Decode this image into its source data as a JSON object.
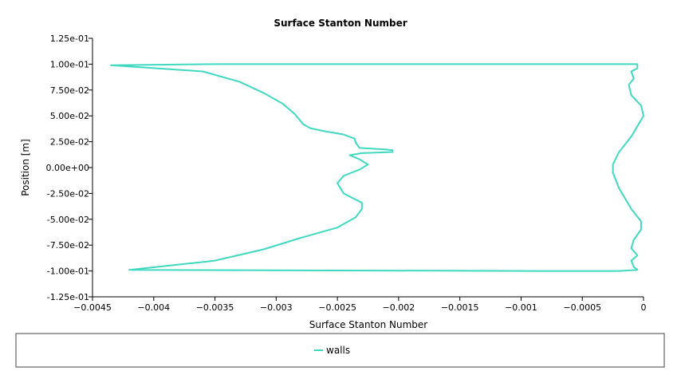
{
  "chart_data": {
    "type": "line",
    "title": "Surface Stanton Number",
    "xlabel": "Surface Stanton Number",
    "ylabel": "Position [m]",
    "xlim": [
      -0.0045,
      0
    ],
    "ylim": [
      -0.125,
      0.125
    ],
    "x_ticks": [
      {
        "value": -0.0045,
        "label": "−0.0045"
      },
      {
        "value": -0.004,
        "label": "−0.004"
      },
      {
        "value": -0.0035,
        "label": "−0.0035"
      },
      {
        "value": -0.003,
        "label": "−0.003"
      },
      {
        "value": -0.0025,
        "label": "−0.0025"
      },
      {
        "value": -0.002,
        "label": "−0.002"
      },
      {
        "value": -0.0015,
        "label": "−0.0015"
      },
      {
        "value": -0.001,
        "label": "−0.001"
      },
      {
        "value": -0.0005,
        "label": "−0.0005"
      },
      {
        "value": 0,
        "label": "0"
      }
    ],
    "y_ticks": [
      {
        "value": 0.125,
        "label": "1.25e-01"
      },
      {
        "value": 0.1,
        "label": "1.00e-01"
      },
      {
        "value": 0.075,
        "label": "7.50e-02"
      },
      {
        "value": 0.05,
        "label": "5.00e-02"
      },
      {
        "value": 0.025,
        "label": "2.50e-02"
      },
      {
        "value": 0,
        "label": "0.00e+00"
      },
      {
        "value": -0.025,
        "label": "-2.50e-02"
      },
      {
        "value": -0.05,
        "label": "-5.00e-02"
      },
      {
        "value": -0.075,
        "label": "-7.50e-02"
      },
      {
        "value": -0.1,
        "label": "-1.00e-01"
      },
      {
        "value": -0.125,
        "label": "-1.25e-01"
      }
    ],
    "grid": false,
    "legend_position": "bottom",
    "series": [
      {
        "name": "walls",
        "color": "#40d9c0",
        "points": [
          [
            -0.00435,
            0.099
          ],
          [
            -0.0036,
            0.093
          ],
          [
            -0.0033,
            0.083
          ],
          [
            -0.0031,
            0.072
          ],
          [
            -0.00295,
            0.062
          ],
          [
            -0.00285,
            0.052
          ],
          [
            -0.00278,
            0.042
          ],
          [
            -0.00272,
            0.038
          ],
          [
            -0.0026,
            0.035
          ],
          [
            -0.00245,
            0.032
          ],
          [
            -0.00236,
            0.028
          ],
          [
            -0.00235,
            0.024
          ],
          [
            -0.00232,
            0.019
          ],
          [
            -0.0021,
            0.0175
          ],
          [
            -0.00205,
            0.0168
          ],
          [
            -0.00205,
            0.015
          ],
          [
            -0.0023,
            0.014
          ],
          [
            -0.0024,
            0.012
          ],
          [
            -0.00232,
            0.008
          ],
          [
            -0.00225,
            0.003
          ],
          [
            -0.00232,
            -0.002
          ],
          [
            -0.00245,
            -0.008
          ],
          [
            -0.0025,
            -0.015
          ],
          [
            -0.00245,
            -0.025
          ],
          [
            -0.0024,
            -0.028
          ],
          [
            -0.0023,
            -0.034
          ],
          [
            -0.0023,
            -0.04
          ],
          [
            -0.00235,
            -0.048
          ],
          [
            -0.0025,
            -0.058
          ],
          [
            -0.0028,
            -0.068
          ],
          [
            -0.0031,
            -0.079
          ],
          [
            -0.0035,
            -0.09
          ],
          [
            -0.0042,
            -0.099
          ],
          [
            -0.0009,
            -0.1
          ],
          [
            -0.0002,
            -0.1
          ],
          [
            -5e-05,
            -0.099
          ],
          [
            -8e-05,
            -0.096
          ],
          [
            -0.0001,
            -0.09
          ],
          [
            -5e-05,
            -0.085
          ],
          [
            -0.0001,
            -0.078
          ],
          [
            -8e-05,
            -0.07
          ],
          [
            -2e-05,
            -0.06
          ],
          [
            -2e-05,
            -0.052
          ],
          [
            -0.0001,
            -0.04
          ],
          [
            -0.0002,
            -0.02
          ],
          [
            -0.00025,
            -0.005
          ],
          [
            -0.00025,
            0.003
          ],
          [
            -0.0002,
            0.015
          ],
          [
            -0.0001,
            0.03
          ],
          [
            0.0,
            0.05
          ],
          [
            -2e-05,
            0.06
          ],
          [
            -0.0001,
            0.07
          ],
          [
            -0.00012,
            0.08
          ],
          [
            -8e-05,
            0.086
          ],
          [
            -0.0001,
            0.093
          ],
          [
            -5e-05,
            0.096
          ],
          [
            -5e-05,
            0.1
          ],
          [
            -0.0011,
            0.1
          ],
          [
            -0.0035,
            0.1
          ],
          [
            -0.00435,
            0.099
          ]
        ]
      }
    ]
  },
  "legend": {
    "items": [
      {
        "label": "walls",
        "color": "#40d9c0"
      }
    ]
  }
}
